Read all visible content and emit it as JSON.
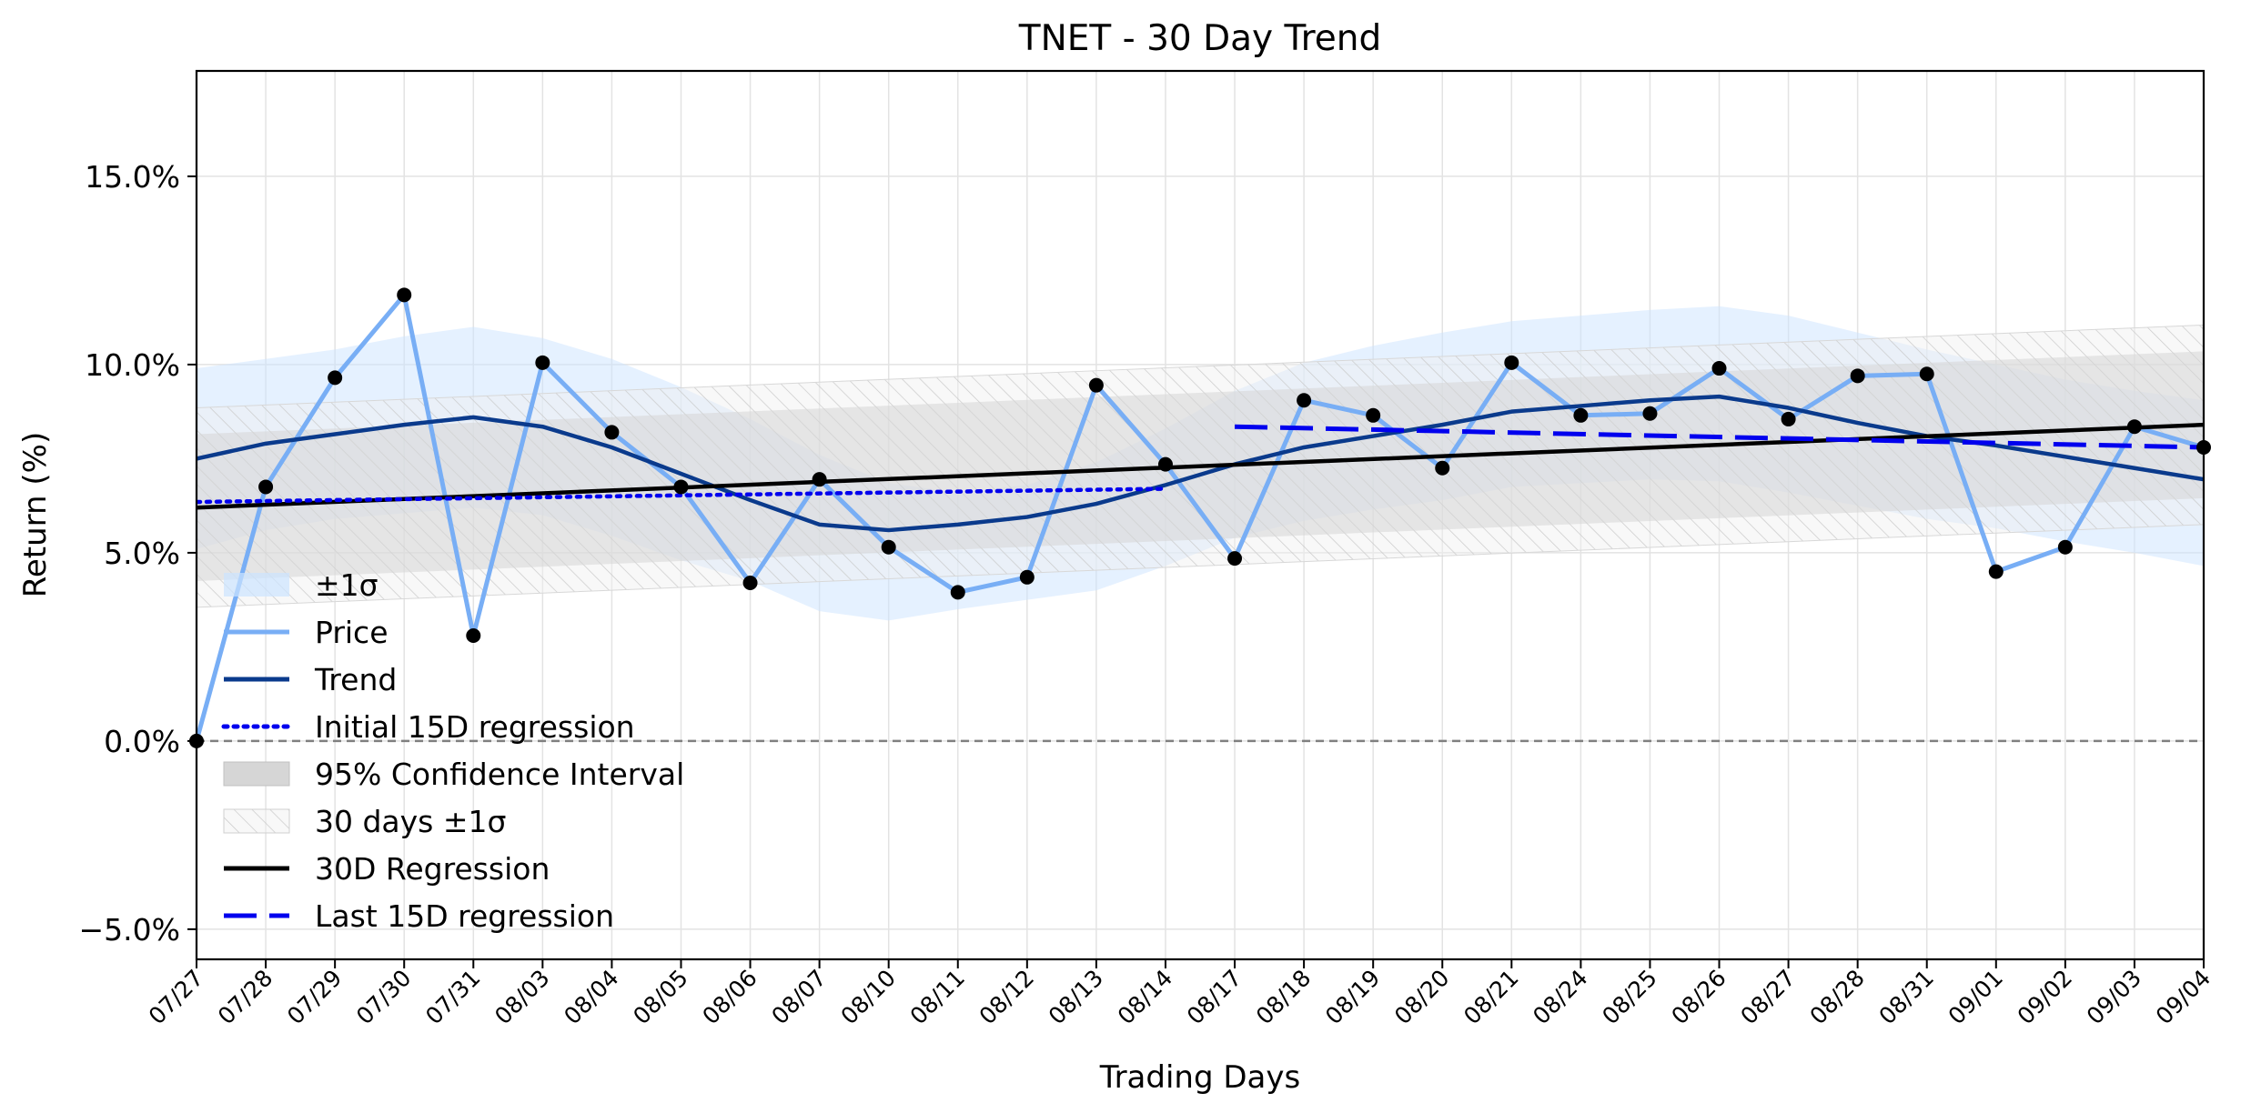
{
  "chart_data": {
    "type": "line",
    "title": "TNET - 30 Day Trend",
    "xlabel": "Trading Days",
    "ylabel": "Return (%)",
    "categories": [
      "07/27",
      "07/28",
      "07/29",
      "07/30",
      "07/31",
      "08/03",
      "08/04",
      "08/05",
      "08/06",
      "08/07",
      "08/10",
      "08/11",
      "08/12",
      "08/13",
      "08/14",
      "08/17",
      "08/18",
      "08/19",
      "08/20",
      "08/21",
      "08/24",
      "08/25",
      "08/26",
      "08/27",
      "08/28",
      "08/31",
      "09/01",
      "09/02",
      "09/03",
      "09/04"
    ],
    "ylim": [
      -5.8,
      17.8
    ],
    "yticks": [
      -5.0,
      0.0,
      5.0,
      10.0,
      15.0
    ],
    "ytick_labels": [
      "−5.0%",
      "0.0%",
      "5.0%",
      "10.0%",
      "15.0%"
    ],
    "grid": true,
    "legend_position": "lower-left",
    "zero_line": 0.0,
    "series": [
      {
        "name": "Price",
        "kind": "line-markers",
        "color": "#78aef5",
        "values": [
          0.0,
          6.75,
          9.65,
          11.85,
          2.8,
          10.05,
          8.2,
          6.75,
          4.2,
          6.95,
          5.15,
          3.95,
          4.35,
          9.45,
          7.35,
          4.85,
          9.05,
          8.65,
          7.25,
          10.05,
          8.65,
          8.7,
          9.9,
          8.55,
          9.7,
          9.75,
          4.5,
          5.15,
          8.35,
          7.8
        ]
      },
      {
        "name": "Trend",
        "kind": "line",
        "color": "#0a3a8c",
        "values": [
          7.5,
          7.9,
          8.15,
          8.4,
          8.6,
          8.35,
          7.8,
          7.1,
          6.4,
          5.75,
          5.6,
          5.75,
          5.95,
          6.3,
          6.8,
          7.35,
          7.8,
          8.1,
          8.4,
          8.75,
          8.9,
          9.05,
          9.15,
          8.85,
          8.45,
          8.1,
          7.85,
          7.55,
          7.25,
          6.95
        ]
      },
      {
        "name": "Initial 15D regression",
        "kind": "dotted",
        "color": "#0000ee",
        "x_range": [
          "07/27",
          "08/14"
        ],
        "start": 6.35,
        "end": 6.7
      },
      {
        "name": "30D Regression",
        "kind": "line",
        "color": "#000000",
        "x_range": [
          "07/27",
          "09/04"
        ],
        "start": 6.2,
        "end": 8.4
      },
      {
        "name": "Last 15D regression",
        "kind": "dashed",
        "color": "#0000ee",
        "x_range": [
          "08/17",
          "09/04"
        ],
        "start": 8.35,
        "end": 7.8
      }
    ],
    "bands": [
      {
        "name": "±1σ",
        "color": "#cce4ff",
        "opacity": 0.5,
        "upper": [
          9.9,
          10.15,
          10.4,
          10.75,
          11.0,
          10.7,
          10.15,
          9.4,
          8.55,
          7.6,
          6.85,
          6.6,
          6.8,
          7.4,
          8.3,
          9.3,
          10.05,
          10.5,
          10.85,
          11.15,
          11.3,
          11.45,
          11.55,
          11.3,
          10.85,
          10.4,
          10.0,
          9.6,
          9.3,
          9.05
        ],
        "lower": [
          5.1,
          5.6,
          5.9,
          6.05,
          6.2,
          6.0,
          5.45,
          4.8,
          4.25,
          3.45,
          3.2,
          3.5,
          3.75,
          4.0,
          4.65,
          5.4,
          5.85,
          6.15,
          6.4,
          6.75,
          6.85,
          6.95,
          6.9,
          6.6,
          6.25,
          5.9,
          5.65,
          5.3,
          5.0,
          4.65
        ]
      },
      {
        "name": "95% Confidence Interval",
        "color": "#d6d6d6",
        "opacity": 0.55,
        "upper_start": 8.15,
        "upper_end": 10.35,
        "lower_start": 4.25,
        "lower_end": 6.45
      },
      {
        "name": "30 days ±1σ",
        "color": "#e0e0e0",
        "opacity": 0.45,
        "hatch": true,
        "upper_start": 8.85,
        "upper_end": 11.05,
        "lower_start": 3.55,
        "lower_end": 5.75
      }
    ],
    "legend": [
      "±1σ",
      "Price",
      "Trend",
      "Initial 15D regression",
      "95% Confidence Interval",
      "30 days ±1σ",
      "30D Regression",
      "Last 15D regression"
    ]
  }
}
